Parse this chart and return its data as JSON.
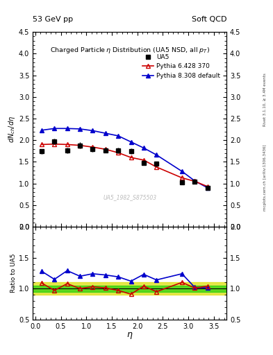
{
  "title_left": "53 GeV pp",
  "title_right": "Soft QCD",
  "plot_title": "Charged Particleη Distribution (UA5 NSD, all p_{T})",
  "right_label1": "Rivet 3.1.10, ≥ 3.4M events",
  "right_label2": "mcplots.cern.ch [arXiv:1306.3436]",
  "watermark": "UA5_1982_S875503",
  "xlabel": "η",
  "ylabel_main": "dN_{ch}/dη",
  "ylabel_ratio": "Ratio to UA5",
  "ylim_main": [
    0.0,
    4.5
  ],
  "ylim_ratio": [
    0.5,
    2.0
  ],
  "xlim": [
    -0.05,
    3.75
  ],
  "ua5_eta": [
    0.125,
    0.375,
    0.625,
    0.875,
    1.125,
    1.375,
    1.625,
    1.875,
    2.125,
    2.375,
    2.875,
    3.125,
    3.375
  ],
  "ua5_val": [
    1.74,
    1.97,
    1.76,
    1.88,
    1.79,
    1.77,
    1.76,
    1.75,
    1.48,
    1.45,
    1.03,
    1.04,
    0.89
  ],
  "ua5_err": [
    0.06,
    0.07,
    0.06,
    0.07,
    0.06,
    0.06,
    0.06,
    0.06,
    0.05,
    0.05,
    0.04,
    0.04,
    0.03
  ],
  "py6_eta": [
    0.125,
    0.375,
    0.625,
    0.875,
    1.125,
    1.375,
    1.625,
    1.875,
    2.125,
    2.375,
    2.875,
    3.125,
    3.375
  ],
  "py6_val": [
    1.9,
    1.91,
    1.9,
    1.88,
    1.84,
    1.79,
    1.71,
    1.6,
    1.54,
    1.38,
    1.13,
    1.05,
    0.93
  ],
  "py8_eta": [
    0.125,
    0.375,
    0.625,
    0.875,
    1.125,
    1.375,
    1.625,
    1.875,
    2.125,
    2.375,
    2.875,
    3.125,
    3.375
  ],
  "py8_val": [
    2.23,
    2.27,
    2.27,
    2.26,
    2.22,
    2.16,
    2.1,
    1.96,
    1.82,
    1.66,
    1.28,
    1.06,
    0.9
  ],
  "ua5_color": "#000000",
  "py6_color": "#cc0000",
  "py8_color": "#0000cc",
  "green_band": 0.05,
  "yellow_band": 0.1,
  "py6_ratio": [
    1.09,
    0.97,
    1.08,
    1.0,
    1.03,
    1.01,
    0.97,
    0.91,
    1.04,
    0.95,
    1.1,
    1.01,
    1.04
  ],
  "py8_ratio": [
    1.28,
    1.15,
    1.29,
    1.2,
    1.24,
    1.22,
    1.19,
    1.12,
    1.23,
    1.14,
    1.24,
    1.02,
    1.01
  ]
}
